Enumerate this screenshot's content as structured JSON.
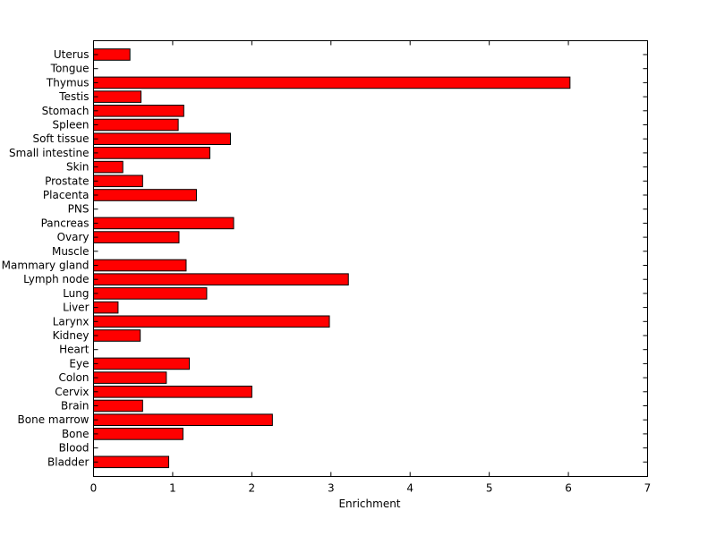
{
  "chart_data": {
    "type": "bar",
    "orientation": "horizontal",
    "categories": [
      "Uterus",
      "Tongue",
      "Thymus",
      "Testis",
      "Stomach",
      "Spleen",
      "Soft tissue",
      "Small intestine",
      "Skin",
      "Prostate",
      "Placenta",
      "PNS",
      "Pancreas",
      "Ovary",
      "Muscle",
      "Mammary gland",
      "Lymph node",
      "Lung",
      "Liver",
      "Larynx",
      "Kidney",
      "Heart",
      "Eye",
      "Colon",
      "Cervix",
      "Brain",
      "Bone marrow",
      "Bone",
      "Blood",
      "Bladder"
    ],
    "values": [
      0.46,
      0,
      6.02,
      0.6,
      1.14,
      1.07,
      1.73,
      1.47,
      0.37,
      0.62,
      1.3,
      0,
      1.77,
      1.08,
      0,
      1.17,
      3.22,
      1.43,
      0.31,
      2.98,
      0.59,
      0,
      1.21,
      0.92,
      2.0,
      0.62,
      2.26,
      1.13,
      0,
      0.95
    ],
    "title": "",
    "xlabel": "Enrichment",
    "ylabel": "",
    "xlim": [
      0,
      7
    ],
    "xticks": [
      "0",
      "1",
      "2",
      "3",
      "4",
      "5",
      "6",
      "7"
    ],
    "bar_color": "#ff0000",
    "grid": false,
    "legend": "none"
  }
}
